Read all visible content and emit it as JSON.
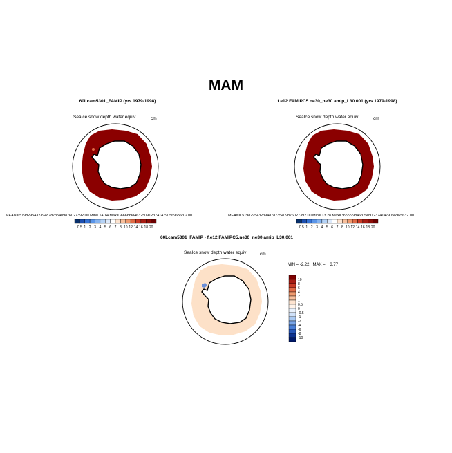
{
  "title": "MAM",
  "panels": [
    {
      "title": "60Lcam5301_FAMIP (yrs 1979-1998)",
      "variable": "SeaIce snow depth water equiv",
      "units": "cm",
      "stats": "MEAN= 5198295432394878735409876027392.00  Min=   14.14  Max=  9999998463250912374147905696563 2.00"
    },
    {
      "title": "f.e12.FAMIPC5.ne30_ne30.amip_L30.001 (yrs 1979-1998)",
      "variable": "SeaIce snow depth water equiv",
      "units": "cm",
      "stats": "MEAN= 5198295432394878735409876027392.00  Min=   13.28  Max=  99999984632509123741479056965632.00"
    }
  ],
  "colorbar_top": {
    "labels": [
      "0.5",
      "1",
      "2",
      "3",
      "4",
      "5",
      "6",
      "7",
      "8",
      "10",
      "12",
      "14",
      "16",
      "18",
      "20"
    ],
    "colors": [
      "#08306b",
      "#1c4fb0",
      "#3673d6",
      "#5b95e8",
      "#86b4f0",
      "#b4d2f6",
      "#dce9fb",
      "#ffffff",
      "#fde3cf",
      "#f8bf9c",
      "#f09a6e",
      "#e06a46",
      "#c83a25",
      "#a81c13",
      "#8b0d07",
      "#6b0000"
    ]
  },
  "diff_panel": {
    "title": "60Lcam5301_FAMIP - f.e12.FAMIPC5.ne30_ne30.amip_L30.001",
    "variable": "SeaIce snow depth water equiv",
    "units": "cm",
    "min_label": "MIN =",
    "min_value": "-2.22",
    "max_label": "MAX =",
    "max_value": "3.77"
  },
  "colorbar_diff": {
    "labels": [
      "10",
      "8",
      "6",
      "4",
      "2",
      "1",
      "0.5",
      "0",
      "-0.5",
      "-1",
      "-2",
      "-4",
      "-6",
      "-8",
      "-10"
    ],
    "colors": [
      "#7f0000",
      "#a81c13",
      "#c83a25",
      "#e06a46",
      "#f09a6e",
      "#f8bf9c",
      "#fde3cf",
      "#fff2e8",
      "#eaf2fd",
      "#cfe1f9",
      "#a9c9f2",
      "#7aa6e8",
      "#4a7fd6",
      "#2556b8",
      "#0d3290",
      "#001a6b"
    ]
  },
  "map_colors": {
    "snow_dark_red": "#8b0000",
    "diff_light_orange": "#fde1c8",
    "diff_orange": "#f08a55",
    "diff_blue": "#6b8fd8",
    "land_outline": "#000000"
  }
}
